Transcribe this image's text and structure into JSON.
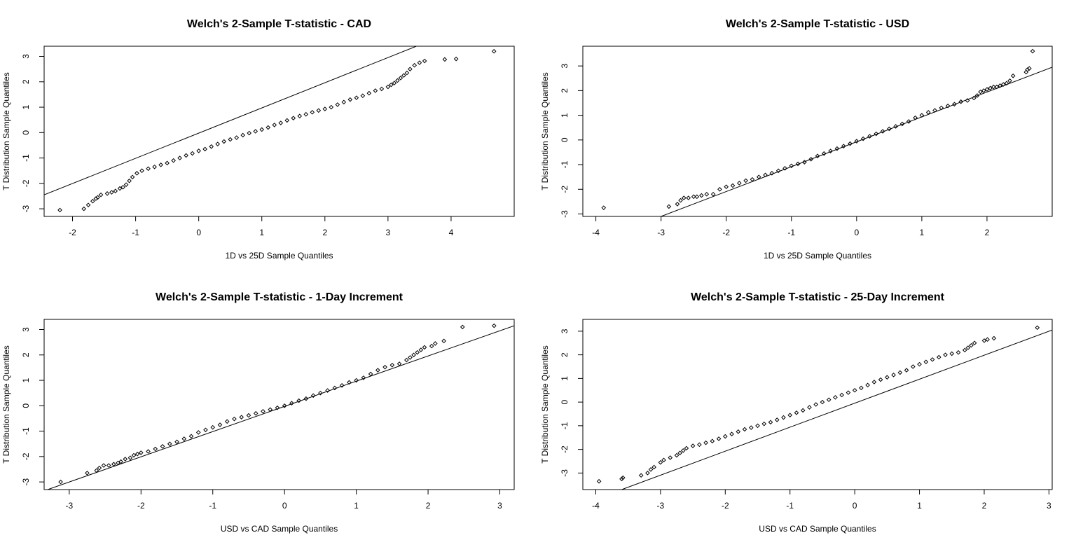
{
  "chart_data": [
    {
      "type": "scatter",
      "title": "Welch's 2-Sample T-statistic - CAD",
      "xlabel": "1D vs 25D Sample Quantiles",
      "ylabel": "T Distribution Sample Quantiles",
      "xlim": [
        -2.45,
        5.0
      ],
      "ylim": [
        -3.3,
        3.4
      ],
      "xticks": [
        -2,
        -1,
        0,
        1,
        2,
        3,
        4
      ],
      "yticks": [
        -3,
        -2,
        -1,
        0,
        1,
        2,
        3
      ],
      "reference_line": {
        "x": [
          -2.45,
          3.45
        ],
        "y": [
          -2.45,
          3.4
        ]
      },
      "series": [
        {
          "x": [
            -2.2,
            -1.82,
            -1.75,
            -1.68,
            -1.63,
            -1.6,
            -1.55,
            -1.45,
            -1.38,
            -1.32,
            -1.25,
            -1.2,
            -1.15,
            -1.1,
            -1.05,
            -0.98,
            -0.9,
            -0.8,
            -0.7,
            -0.6,
            -0.5,
            -0.4,
            -0.3,
            -0.2,
            -0.1,
            0.0,
            0.1,
            0.2,
            0.3,
            0.4,
            0.5,
            0.6,
            0.7,
            0.8,
            0.9,
            1.0,
            1.1,
            1.2,
            1.3,
            1.4,
            1.5,
            1.6,
            1.7,
            1.8,
            1.9,
            2.0,
            2.1,
            2.2,
            2.3,
            2.4,
            2.5,
            2.6,
            2.7,
            2.8,
            2.9,
            3.0,
            3.05,
            3.1,
            3.15,
            3.2,
            3.25,
            3.3,
            3.35,
            3.42,
            3.5,
            3.58,
            3.9,
            4.08,
            4.68
          ],
          "y": [
            -3.05,
            -3.0,
            -2.85,
            -2.7,
            -2.6,
            -2.55,
            -2.45,
            -2.4,
            -2.35,
            -2.3,
            -2.2,
            -2.15,
            -2.05,
            -1.9,
            -1.75,
            -1.6,
            -1.5,
            -1.42,
            -1.35,
            -1.27,
            -1.2,
            -1.1,
            -1.0,
            -0.9,
            -0.82,
            -0.72,
            -0.65,
            -0.55,
            -0.45,
            -0.35,
            -0.27,
            -0.2,
            -0.1,
            -0.02,
            0.05,
            0.12,
            0.2,
            0.3,
            0.38,
            0.48,
            0.57,
            0.65,
            0.72,
            0.8,
            0.87,
            0.93,
            1.0,
            1.1,
            1.2,
            1.3,
            1.37,
            1.45,
            1.55,
            1.65,
            1.72,
            1.8,
            1.88,
            1.95,
            2.05,
            2.15,
            2.25,
            2.35,
            2.5,
            2.65,
            2.75,
            2.82,
            2.88,
            2.9,
            3.2
          ]
        }
      ]
    },
    {
      "type": "scatter",
      "title": "Welch's 2-Sample T-statistic - USD",
      "xlabel": "1D vs 25D Sample Quantiles",
      "ylabel": "T Distribution Sample Quantiles",
      "xlim": [
        -4.2,
        3.0
      ],
      "ylim": [
        -3.1,
        3.8
      ],
      "xticks": [
        -4,
        -3,
        -2,
        -1,
        0,
        1,
        2
      ],
      "yticks": [
        -3,
        -2,
        -1,
        0,
        1,
        2,
        3
      ],
      "reference_line": {
        "x": [
          -3.0,
          3.0
        ],
        "y": [
          -3.1,
          2.95
        ]
      },
      "series": [
        {
          "x": [
            -3.88,
            -2.88,
            -2.75,
            -2.7,
            -2.65,
            -2.58,
            -2.5,
            -2.45,
            -2.38,
            -2.3,
            -2.2,
            -2.1,
            -2.0,
            -1.9,
            -1.8,
            -1.7,
            -1.6,
            -1.5,
            -1.4,
            -1.3,
            -1.2,
            -1.1,
            -1.0,
            -0.9,
            -0.8,
            -0.7,
            -0.6,
            -0.5,
            -0.4,
            -0.3,
            -0.2,
            -0.1,
            0.0,
            0.1,
            0.2,
            0.3,
            0.4,
            0.5,
            0.6,
            0.7,
            0.8,
            0.9,
            1.0,
            1.1,
            1.2,
            1.3,
            1.4,
            1.5,
            1.6,
            1.7,
            1.8,
            1.85,
            1.9,
            1.95,
            2.0,
            2.05,
            2.1,
            2.15,
            2.2,
            2.25,
            2.3,
            2.35,
            2.4,
            2.6,
            2.62,
            2.65,
            2.7
          ],
          "y": [
            -2.75,
            -2.7,
            -2.6,
            -2.45,
            -2.35,
            -2.35,
            -2.3,
            -2.3,
            -2.25,
            -2.2,
            -2.2,
            -2.0,
            -1.9,
            -1.85,
            -1.75,
            -1.65,
            -1.6,
            -1.5,
            -1.42,
            -1.35,
            -1.25,
            -1.15,
            -1.05,
            -0.97,
            -0.9,
            -0.78,
            -0.65,
            -0.55,
            -0.45,
            -0.35,
            -0.25,
            -0.15,
            -0.05,
            0.05,
            0.15,
            0.25,
            0.35,
            0.45,
            0.55,
            0.65,
            0.75,
            0.9,
            1.0,
            1.12,
            1.2,
            1.3,
            1.38,
            1.45,
            1.55,
            1.6,
            1.7,
            1.8,
            1.95,
            2.0,
            2.05,
            2.1,
            2.15,
            2.15,
            2.2,
            2.25,
            2.3,
            2.4,
            2.6,
            2.75,
            2.85,
            2.9,
            3.6
          ]
        }
      ]
    },
    {
      "type": "scatter",
      "title": "Welch's 2-Sample T-statistic - 1-Day Increment",
      "xlabel": "USD vs CAD Sample Quantiles",
      "ylabel": "T Distribution Sample Quantiles",
      "xlim": [
        -3.35,
        3.2
      ],
      "ylim": [
        -3.3,
        3.4
      ],
      "xticks": [
        -3,
        -2,
        -1,
        0,
        1,
        2,
        3
      ],
      "yticks": [
        -3,
        -2,
        -1,
        0,
        1,
        2,
        3
      ],
      "reference_line": {
        "x": [
          -3.3,
          3.2
        ],
        "y": [
          -3.3,
          3.15
        ]
      },
      "series": [
        {
          "x": [
            -3.12,
            -2.75,
            -2.62,
            -2.58,
            -2.52,
            -2.45,
            -2.38,
            -2.32,
            -2.28,
            -2.22,
            -2.15,
            -2.1,
            -2.05,
            -2.0,
            -1.9,
            -1.8,
            -1.7,
            -1.6,
            -1.5,
            -1.4,
            -1.3,
            -1.2,
            -1.1,
            -1.0,
            -0.9,
            -0.8,
            -0.7,
            -0.6,
            -0.5,
            -0.4,
            -0.3,
            -0.2,
            -0.1,
            0.0,
            0.1,
            0.2,
            0.3,
            0.4,
            0.5,
            0.6,
            0.7,
            0.8,
            0.9,
            1.0,
            1.1,
            1.2,
            1.3,
            1.4,
            1.5,
            1.6,
            1.7,
            1.75,
            1.8,
            1.85,
            1.9,
            1.95,
            2.05,
            2.1,
            2.22,
            2.48,
            2.92
          ],
          "y": [
            -3.0,
            -2.65,
            -2.55,
            -2.45,
            -2.35,
            -2.35,
            -2.3,
            -2.25,
            -2.2,
            -2.1,
            -2.05,
            -1.95,
            -1.9,
            -1.85,
            -1.8,
            -1.7,
            -1.6,
            -1.5,
            -1.42,
            -1.3,
            -1.2,
            -1.05,
            -0.95,
            -0.85,
            -0.75,
            -0.62,
            -0.52,
            -0.45,
            -0.38,
            -0.3,
            -0.22,
            -0.15,
            -0.08,
            0.0,
            0.1,
            0.2,
            0.28,
            0.4,
            0.5,
            0.6,
            0.7,
            0.8,
            0.92,
            1.0,
            1.1,
            1.25,
            1.4,
            1.52,
            1.6,
            1.65,
            1.8,
            1.9,
            2.0,
            2.1,
            2.2,
            2.3,
            2.35,
            2.45,
            2.55,
            3.1,
            3.15
          ]
        }
      ]
    },
    {
      "type": "scatter",
      "title": "Welch's 2-Sample T-statistic - 25-Day Increment",
      "xlabel": "USD vs CAD Sample Quantiles",
      "ylabel": "T Distribution Sample Quantiles",
      "xlim": [
        -4.2,
        3.05
      ],
      "ylim": [
        -3.7,
        3.5
      ],
      "xticks": [
        -4,
        -3,
        -2,
        -1,
        0,
        1,
        2,
        3
      ],
      "yticks": [
        -3,
        -2,
        -1,
        0,
        1,
        2,
        3
      ],
      "reference_line": {
        "x": [
          -3.6,
          3.05
        ],
        "y": [
          -3.7,
          3.05
        ]
      },
      "series": [
        {
          "x": [
            -3.95,
            -3.6,
            -3.58,
            -3.3,
            -3.2,
            -3.15,
            -3.1,
            -3.0,
            -2.95,
            -2.85,
            -2.75,
            -2.7,
            -2.65,
            -2.6,
            -2.5,
            -2.4,
            -2.3,
            -2.2,
            -2.1,
            -2.0,
            -1.9,
            -1.8,
            -1.7,
            -1.6,
            -1.5,
            -1.4,
            -1.3,
            -1.2,
            -1.1,
            -1.0,
            -0.9,
            -0.8,
            -0.7,
            -0.6,
            -0.5,
            -0.4,
            -0.3,
            -0.2,
            -0.1,
            0.0,
            0.1,
            0.2,
            0.3,
            0.4,
            0.5,
            0.6,
            0.7,
            0.8,
            0.9,
            1.0,
            1.1,
            1.2,
            1.3,
            1.4,
            1.5,
            1.6,
            1.7,
            1.75,
            1.8,
            1.85,
            2.0,
            2.05,
            2.15,
            2.82
          ],
          "y": [
            -3.35,
            -3.25,
            -3.2,
            -3.1,
            -3.0,
            -2.85,
            -2.75,
            -2.55,
            -2.45,
            -2.35,
            -2.25,
            -2.15,
            -2.05,
            -1.95,
            -1.85,
            -1.8,
            -1.72,
            -1.65,
            -1.55,
            -1.45,
            -1.35,
            -1.25,
            -1.15,
            -1.08,
            -1.0,
            -0.92,
            -0.85,
            -0.75,
            -0.65,
            -0.55,
            -0.45,
            -0.35,
            -0.22,
            -0.1,
            0.0,
            0.1,
            0.2,
            0.3,
            0.4,
            0.5,
            0.6,
            0.72,
            0.85,
            0.95,
            1.05,
            1.15,
            1.25,
            1.35,
            1.5,
            1.6,
            1.7,
            1.8,
            1.9,
            2.0,
            2.05,
            2.1,
            2.2,
            2.3,
            2.4,
            2.5,
            2.6,
            2.65,
            2.7,
            3.15
          ]
        }
      ]
    }
  ]
}
